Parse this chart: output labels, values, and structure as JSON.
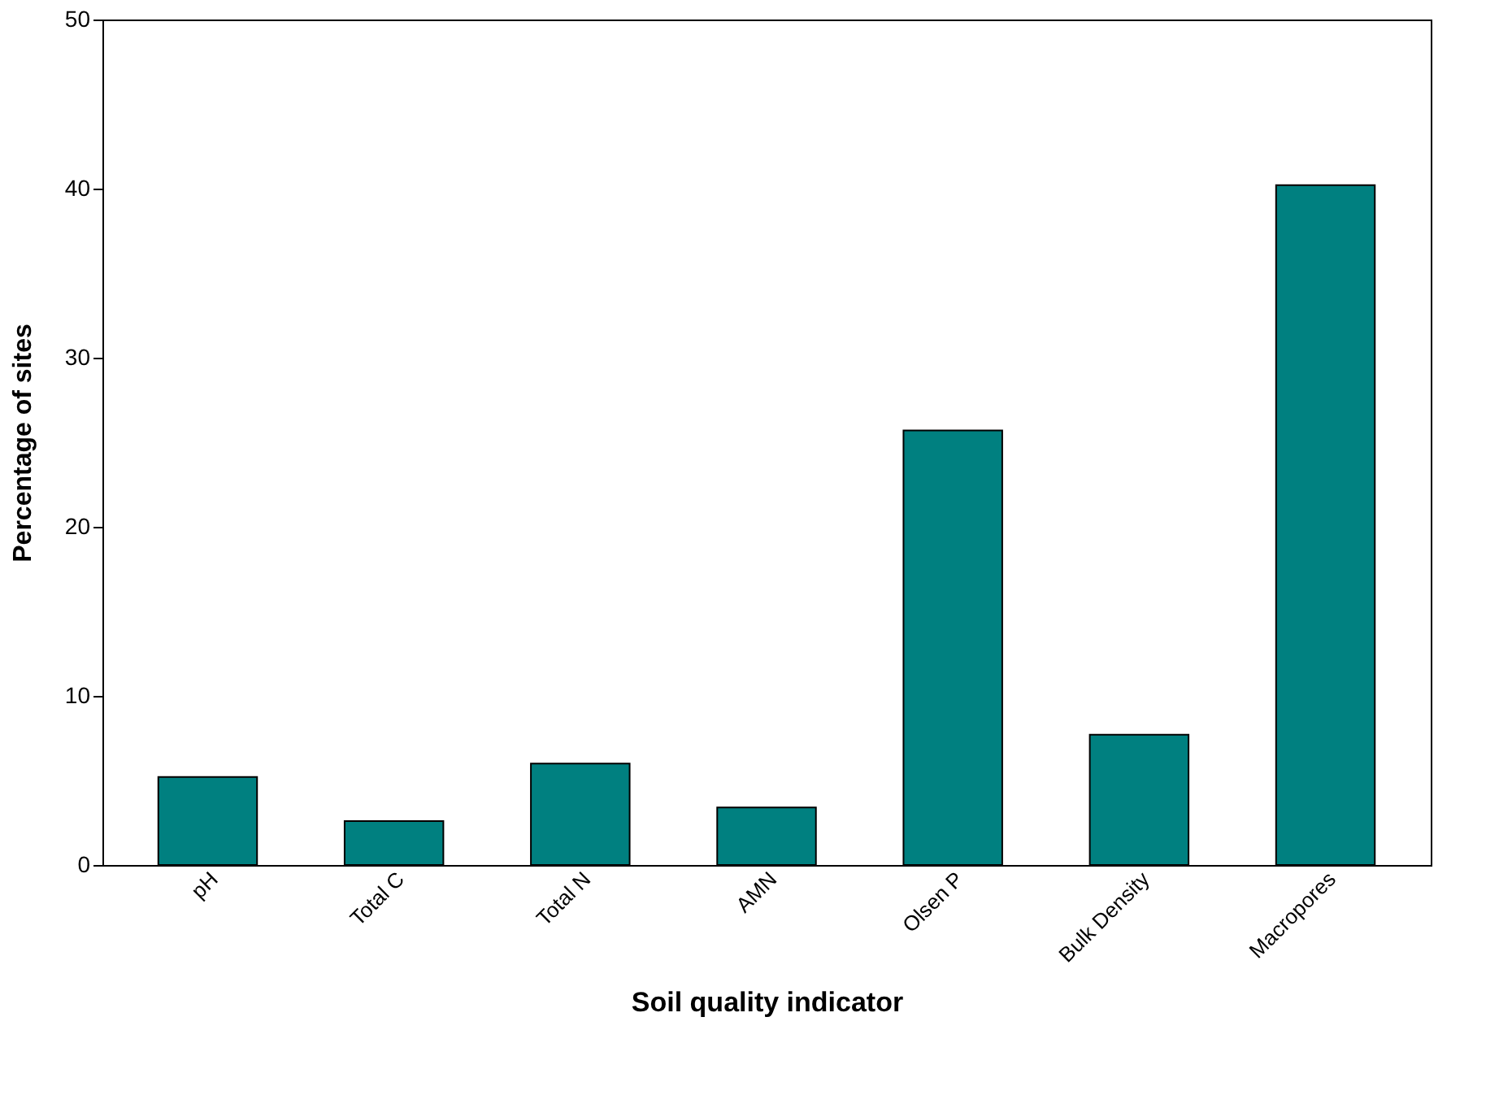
{
  "chart_data": {
    "type": "bar",
    "xlabel": "Soil quality indicator",
    "ylabel": "Percentage of sites",
    "categories": [
      "pH",
      "Total C",
      "Total N",
      "AMN",
      "Olsen P",
      "Bulk Density",
      "Macropores"
    ],
    "values": [
      5.2,
      2.6,
      6.0,
      3.4,
      25.7,
      7.7,
      40.2
    ],
    "color": "#008080",
    "ylim": [
      0,
      50
    ],
    "yticks": [
      0,
      10,
      20,
      30,
      40,
      50
    ],
    "grid": false
  }
}
